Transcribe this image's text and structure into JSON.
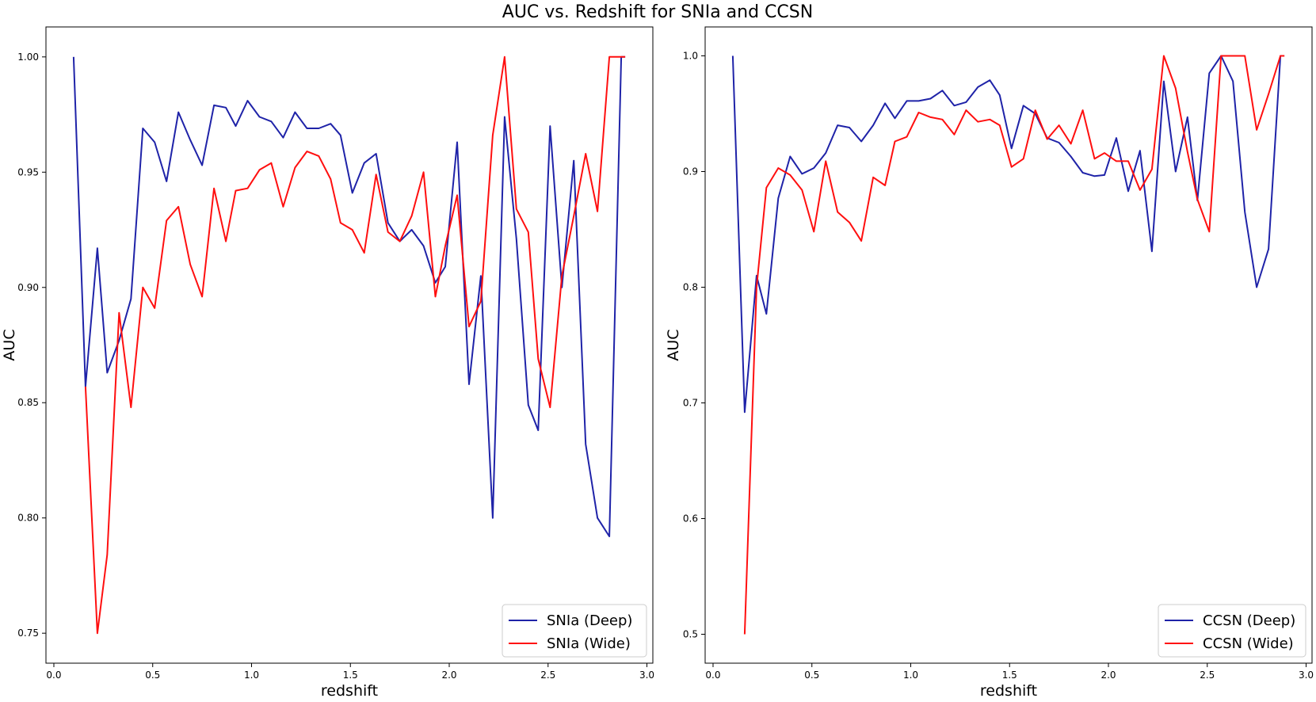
{
  "figure": {
    "title": "AUC vs. Redshift for SNIa and CCSN"
  },
  "colors": {
    "deep": "#1f23a8",
    "wide": "#ff0f0f",
    "axes": "#000000",
    "legend_border": "#cccccc"
  },
  "chart_data": [
    {
      "type": "line",
      "xlabel": "redshift",
      "ylabel": "AUC",
      "xlim": [
        -0.04,
        3.03
      ],
      "ylim": [
        0.737,
        1.013
      ],
      "xticks": [
        0.0,
        0.5,
        1.0,
        1.5,
        2.0,
        2.5,
        3.0
      ],
      "xtick_labels": [
        "0.0",
        "0.5",
        "1.0",
        "1.5",
        "2.0",
        "2.5",
        "3.0"
      ],
      "yticks": [
        0.75,
        0.8,
        0.85,
        0.9,
        0.95,
        1.0
      ],
      "ytick_labels": [
        "0.75",
        "0.80",
        "0.85",
        "0.90",
        "0.95",
        "1.00"
      ],
      "legend": "lower-right",
      "grid": false,
      "series": [
        {
          "name": "SNIa (Deep)",
          "color_key": "deep",
          "x": [
            0.1,
            0.16,
            0.22,
            0.27,
            0.33,
            0.39,
            0.45,
            0.51,
            0.57,
            0.63,
            0.69,
            0.75,
            0.81,
            0.87,
            0.92,
            0.98,
            1.04,
            1.1,
            1.16,
            1.22,
            1.28,
            1.34,
            1.4,
            1.45,
            1.51,
            1.57,
            1.63,
            1.69,
            1.75,
            1.81,
            1.87,
            1.93,
            1.98,
            2.04,
            2.1,
            2.16,
            2.22,
            2.28,
            2.34,
            2.4,
            2.45,
            2.51,
            2.57,
            2.63,
            2.69,
            2.75,
            2.81,
            2.87,
            2.89
          ],
          "y": [
            1.0,
            0.857,
            0.917,
            0.863,
            0.877,
            0.895,
            0.969,
            0.963,
            0.946,
            0.976,
            0.964,
            0.953,
            0.979,
            0.978,
            0.97,
            0.981,
            0.974,
            0.972,
            0.965,
            0.976,
            0.969,
            0.969,
            0.971,
            0.966,
            0.941,
            0.954,
            0.958,
            0.928,
            0.92,
            0.925,
            0.918,
            0.902,
            0.909,
            0.963,
            0.858,
            0.905,
            0.8,
            0.974,
            0.921,
            0.849,
            0.838,
            0.97,
            0.9,
            0.955,
            0.832,
            0.8,
            0.792,
            1.0,
            1.0
          ]
        },
        {
          "name": "SNIa (Wide)",
          "color_key": "wide",
          "x": [
            0.16,
            0.22,
            0.27,
            0.33,
            0.39,
            0.45,
            0.51,
            0.57,
            0.63,
            0.69,
            0.75,
            0.81,
            0.87,
            0.92,
            0.98,
            1.04,
            1.1,
            1.16,
            1.22,
            1.28,
            1.34,
            1.4,
            1.45,
            1.51,
            1.57,
            1.63,
            1.69,
            1.75,
            1.81,
            1.87,
            1.93,
            1.98,
            2.04,
            2.1,
            2.16,
            2.22,
            2.28,
            2.34,
            2.4,
            2.45,
            2.51,
            2.57,
            2.63,
            2.69,
            2.75,
            2.81,
            2.87,
            2.89
          ],
          "y": [
            0.857,
            0.75,
            0.784,
            0.889,
            0.848,
            0.9,
            0.891,
            0.929,
            0.935,
            0.91,
            0.896,
            0.943,
            0.92,
            0.942,
            0.943,
            0.951,
            0.954,
            0.935,
            0.952,
            0.959,
            0.957,
            0.947,
            0.928,
            0.925,
            0.915,
            0.949,
            0.924,
            0.92,
            0.931,
            0.95,
            0.896,
            0.918,
            0.94,
            0.883,
            0.894,
            0.966,
            1.0,
            0.934,
            0.924,
            0.869,
            0.848,
            0.905,
            0.931,
            0.958,
            0.933,
            1.0,
            1.0,
            1.0
          ]
        }
      ]
    },
    {
      "type": "line",
      "xlabel": "redshift",
      "ylabel": "AUC",
      "xlim": [
        -0.04,
        3.03
      ],
      "ylim": [
        0.475,
        1.025
      ],
      "xticks": [
        0.0,
        0.5,
        1.0,
        1.5,
        2.0,
        2.5,
        3.0
      ],
      "xtick_labels": [
        "0.0",
        "0.5",
        "1.0",
        "1.5",
        "2.0",
        "2.5",
        "3.0"
      ],
      "yticks": [
        0.5,
        0.6,
        0.7,
        0.8,
        0.9,
        1.0
      ],
      "ytick_labels": [
        "0.5",
        "0.6",
        "0.7",
        "0.8",
        "0.9",
        "1.0"
      ],
      "legend": "lower-right",
      "grid": false,
      "series": [
        {
          "name": "CCSN (Deep)",
          "color_key": "deep",
          "x": [
            0.1,
            0.16,
            0.22,
            0.27,
            0.33,
            0.39,
            0.45,
            0.51,
            0.57,
            0.63,
            0.69,
            0.75,
            0.81,
            0.87,
            0.92,
            0.98,
            1.04,
            1.1,
            1.16,
            1.22,
            1.28,
            1.34,
            1.4,
            1.45,
            1.51,
            1.57,
            1.63,
            1.69,
            1.75,
            1.81,
            1.87,
            1.93,
            1.98,
            2.04,
            2.1,
            2.16,
            2.22,
            2.28,
            2.34,
            2.4,
            2.45,
            2.51,
            2.57,
            2.63,
            2.69,
            2.75,
            2.81,
            2.87,
            2.89
          ],
          "y": [
            1.0,
            0.692,
            0.81,
            0.777,
            0.877,
            0.913,
            0.898,
            0.903,
            0.916,
            0.94,
            0.938,
            0.926,
            0.94,
            0.959,
            0.946,
            0.961,
            0.961,
            0.963,
            0.97,
            0.957,
            0.96,
            0.973,
            0.979,
            0.966,
            0.92,
            0.957,
            0.95,
            0.929,
            0.925,
            0.913,
            0.899,
            0.896,
            0.897,
            0.929,
            0.883,
            0.918,
            0.831,
            0.978,
            0.9,
            0.947,
            0.875,
            0.985,
            1.0,
            0.978,
            0.865,
            0.8,
            0.833,
            1.0,
            1.0
          ]
        },
        {
          "name": "CCSN (Wide)",
          "color_key": "wide",
          "x": [
            0.16,
            0.22,
            0.27,
            0.33,
            0.39,
            0.45,
            0.51,
            0.57,
            0.63,
            0.69,
            0.75,
            0.81,
            0.87,
            0.92,
            0.98,
            1.04,
            1.1,
            1.16,
            1.22,
            1.28,
            1.34,
            1.4,
            1.45,
            1.51,
            1.57,
            1.63,
            1.69,
            1.75,
            1.81,
            1.87,
            1.93,
            1.98,
            2.04,
            2.1,
            2.16,
            2.22,
            2.28,
            2.34,
            2.4,
            2.45,
            2.51,
            2.57,
            2.63,
            2.69,
            2.75,
            2.81,
            2.87,
            2.89
          ],
          "y": [
            0.5,
            0.8,
            0.886,
            0.903,
            0.897,
            0.884,
            0.848,
            0.909,
            0.865,
            0.856,
            0.84,
            0.895,
            0.888,
            0.926,
            0.93,
            0.951,
            0.947,
            0.945,
            0.932,
            0.953,
            0.943,
            0.945,
            0.94,
            0.904,
            0.911,
            0.953,
            0.928,
            0.94,
            0.924,
            0.953,
            0.911,
            0.916,
            0.909,
            0.909,
            0.884,
            0.902,
            1.0,
            0.972,
            0.917,
            0.876,
            0.848,
            1.0,
            1.0,
            1.0,
            0.936,
            0.967,
            1.0,
            1.0
          ]
        }
      ]
    }
  ]
}
